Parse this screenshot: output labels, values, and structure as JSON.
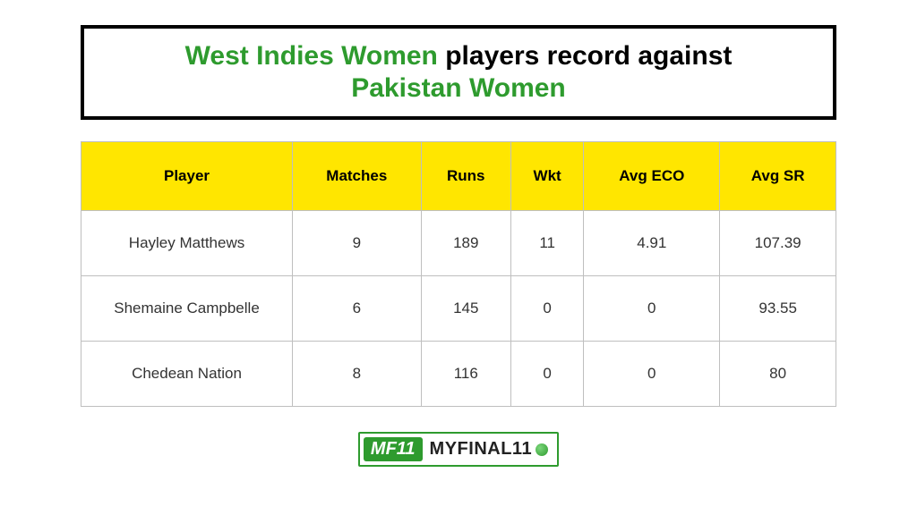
{
  "title": {
    "team1": "West Indies Women",
    "mid": "players record against",
    "team2": "Pakistan Women",
    "team_color": "#2e9b2e",
    "mid_color": "#000000",
    "fontsize": 30,
    "border_color": "#000000",
    "border_width": 4
  },
  "table": {
    "header_bg": "#ffe600",
    "border_color": "#bfbfbf",
    "header_fontsize": 17,
    "cell_fontsize": 17,
    "columns": [
      "Player",
      "Matches",
      "Runs",
      "Wkt",
      "Avg ECO",
      "Avg SR"
    ],
    "rows": [
      [
        "Hayley Matthews",
        "9",
        "189",
        "11",
        "4.91",
        "107.39"
      ],
      [
        "Shemaine Campbelle",
        "6",
        "145",
        "0",
        "0",
        "93.55"
      ],
      [
        "Chedean Nation",
        "8",
        "116",
        "0",
        "0",
        "80"
      ]
    ]
  },
  "logo": {
    "badge": "MF11",
    "text": "MYFINAL11",
    "badge_bg": "#2e9b2e",
    "badge_color": "#ffffff",
    "border_color": "#2e9b2e"
  },
  "background_color": "#ffffff"
}
